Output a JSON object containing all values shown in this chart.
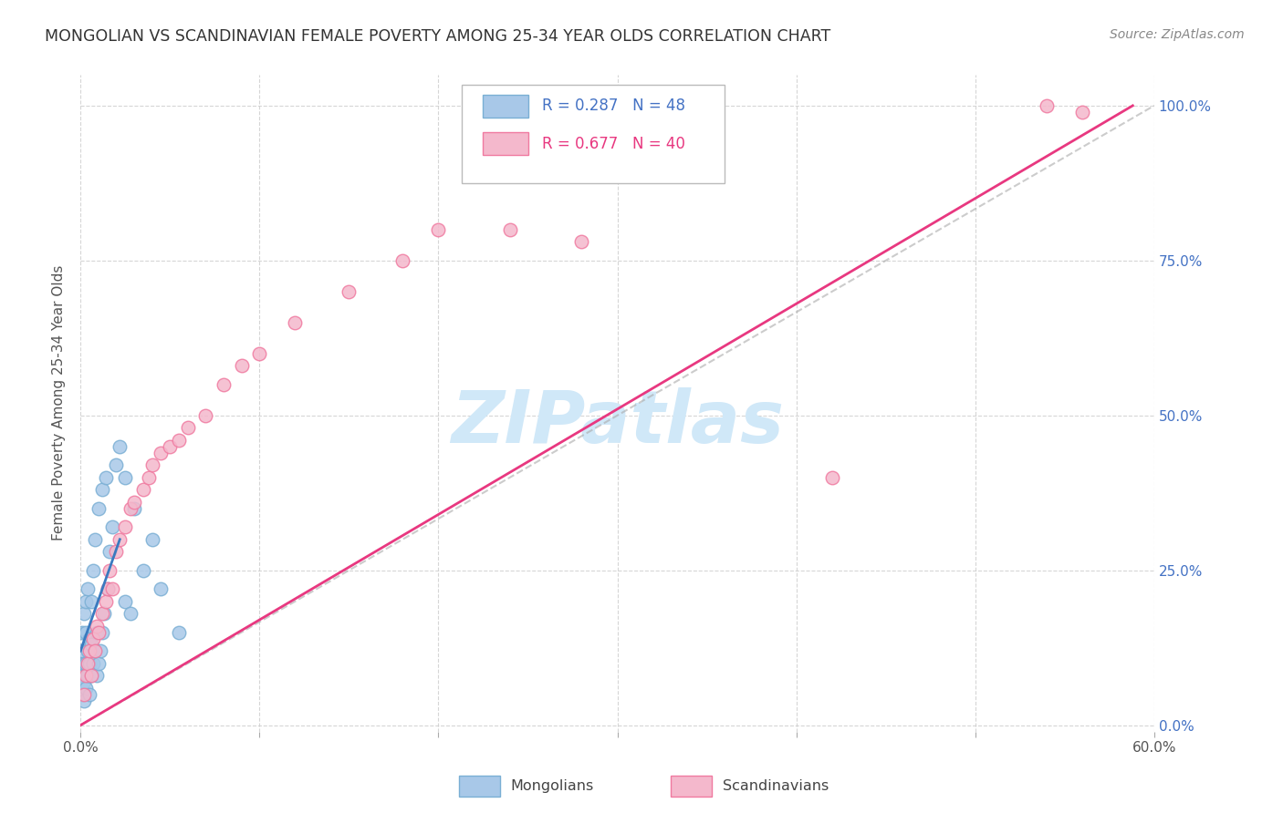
{
  "title": "MONGOLIAN VS SCANDINAVIAN FEMALE POVERTY AMONG 25-34 YEAR OLDS CORRELATION CHART",
  "source": "Source: ZipAtlas.com",
  "ylabel": "Female Poverty Among 25-34 Year Olds",
  "xlim": [
    0.0,
    0.6
  ],
  "ylim": [
    -0.01,
    1.05
  ],
  "xtick_positions": [
    0.0,
    0.1,
    0.2,
    0.3,
    0.4,
    0.5,
    0.6
  ],
  "xticklabels_show": {
    "0": "0.0%",
    "6": "60.0%"
  },
  "ytick_positions": [
    0.0,
    0.25,
    0.5,
    0.75,
    1.0
  ],
  "yticklabels_right": [
    "0.0%",
    "25.0%",
    "50.0%",
    "75.0%",
    "100.0%"
  ],
  "legend_r_blue": "0.287",
  "legend_n_blue": "48",
  "legend_r_pink": "0.677",
  "legend_n_pink": "40",
  "legend_label_blue": "Mongolians",
  "legend_label_pink": "Scandinavians",
  "blue_scatter_color": "#a8c8e8",
  "blue_edge_color": "#7aafd4",
  "pink_scatter_color": "#f4b8cc",
  "pink_edge_color": "#f07aa0",
  "blue_line_color": "#3a7abf",
  "pink_line_color": "#e83880",
  "ref_line_color": "#aaaaaa",
  "watermark_text": "ZIPatlas",
  "watermark_color": "#d0e8f8",
  "title_color": "#333333",
  "source_color": "#888888",
  "right_axis_color": "#4472c4",
  "mongolian_x": [
    0.001,
    0.001,
    0.001,
    0.001,
    0.001,
    0.002,
    0.002,
    0.002,
    0.002,
    0.003,
    0.003,
    0.003,
    0.003,
    0.004,
    0.004,
    0.004,
    0.005,
    0.005,
    0.005,
    0.006,
    0.006,
    0.006,
    0.007,
    0.007,
    0.008,
    0.008,
    0.009,
    0.009,
    0.01,
    0.01,
    0.011,
    0.012,
    0.012,
    0.013,
    0.014,
    0.015,
    0.016,
    0.018,
    0.02,
    0.022,
    0.025,
    0.025,
    0.028,
    0.03,
    0.035,
    0.04,
    0.045,
    0.055
  ],
  "mongolian_y": [
    0.05,
    0.08,
    0.1,
    0.12,
    0.15,
    0.04,
    0.07,
    0.1,
    0.18,
    0.06,
    0.1,
    0.15,
    0.2,
    0.08,
    0.12,
    0.22,
    0.05,
    0.1,
    0.14,
    0.08,
    0.13,
    0.2,
    0.1,
    0.25,
    0.12,
    0.3,
    0.08,
    0.15,
    0.1,
    0.35,
    0.12,
    0.15,
    0.38,
    0.18,
    0.4,
    0.22,
    0.28,
    0.32,
    0.42,
    0.45,
    0.2,
    0.4,
    0.18,
    0.35,
    0.25,
    0.3,
    0.22,
    0.15
  ],
  "scandinavian_x": [
    0.002,
    0.003,
    0.004,
    0.005,
    0.006,
    0.007,
    0.008,
    0.009,
    0.01,
    0.012,
    0.014,
    0.015,
    0.016,
    0.018,
    0.02,
    0.022,
    0.025,
    0.028,
    0.03,
    0.035,
    0.038,
    0.04,
    0.045,
    0.05,
    0.055,
    0.06,
    0.07,
    0.08,
    0.09,
    0.1,
    0.12,
    0.15,
    0.18,
    0.2,
    0.24,
    0.28,
    0.3,
    0.42,
    0.54,
    0.56
  ],
  "scandinavian_y": [
    0.05,
    0.08,
    0.1,
    0.12,
    0.08,
    0.14,
    0.12,
    0.16,
    0.15,
    0.18,
    0.2,
    0.22,
    0.25,
    0.22,
    0.28,
    0.3,
    0.32,
    0.35,
    0.36,
    0.38,
    0.4,
    0.42,
    0.44,
    0.45,
    0.46,
    0.48,
    0.5,
    0.55,
    0.58,
    0.6,
    0.65,
    0.7,
    0.75,
    0.8,
    0.8,
    0.78,
    1.0,
    0.4,
    1.0,
    0.99
  ],
  "pink_line_x0": 0.0,
  "pink_line_y0": 0.0,
  "pink_line_x1": 0.588,
  "pink_line_y1": 1.0,
  "blue_line_x0": 0.0,
  "blue_line_y0": 0.12,
  "blue_line_x1": 0.022,
  "blue_line_y1": 0.3,
  "ref_line_x0": 0.0,
  "ref_line_y0": 0.0,
  "ref_line_x1": 0.6,
  "ref_line_y1": 1.0
}
